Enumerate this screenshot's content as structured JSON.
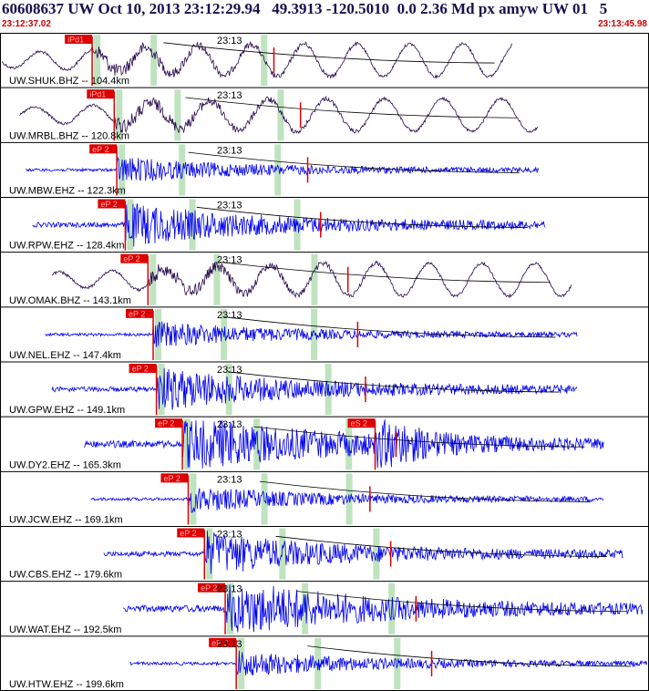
{
  "header": {
    "title": "60608637 UW Oct 10, 2013 23:12:29.94   49.3913 -120.5010  0.0 2.36 Md px amyw UW 01   5",
    "start_time": "23:12:37.02",
    "end_time": "23:13:45.98"
  },
  "colors": {
    "broadband_trace": "#2a0a50",
    "short_period_trace": "#0000ee",
    "pick_box": "#dd0000",
    "pick_text": "#ffaaaa",
    "window_bar": "#bfe3bf",
    "curve": "#000000",
    "label": "#000000"
  },
  "chart_data": {
    "type": "line",
    "time_range": [
      "23:12:37.02",
      "23:13:45.98"
    ],
    "minute_label": "23:13",
    "traces": [
      {
        "label": "UW.SHUK.BHZ -- 104.4km",
        "pick_label": "iPd1",
        "kind": "broadband",
        "pick_frac": 0.142,
        "end_frac": 0.79,
        "start_frac": 0.0
      },
      {
        "label": "UW.MRBL.BHZ -- 120.8km",
        "pick_label": "iPd1",
        "kind": "broadband",
        "pick_frac": 0.176,
        "end_frac": 0.83,
        "start_frac": 0.03
      },
      {
        "label": "UW.MBW.EHZ -- 122.3km",
        "pick_label": "eP 2",
        "kind": "short",
        "pick_frac": 0.18,
        "end_frac": 0.83,
        "start_frac": 0.04
      },
      {
        "label": "UW.RPW.EHZ -- 128.4km",
        "pick_label": "eP 2",
        "kind": "short",
        "pick_frac": 0.193,
        "end_frac": 0.84,
        "start_frac": 0.05
      },
      {
        "label": "UW.OMAK.BHZ -- 143.1km",
        "pick_label": "eP 2",
        "kind": "broadband",
        "pick_frac": 0.228,
        "end_frac": 0.88,
        "start_frac": 0.08
      },
      {
        "label": "UW.NEL.EHZ -- 147.4km",
        "pick_label": "eP 2",
        "kind": "short",
        "pick_frac": 0.236,
        "end_frac": 0.89,
        "start_frac": 0.07
      },
      {
        "label": "UW.GPW.EHZ -- 149.1km",
        "pick_label": "eP 2",
        "kind": "short",
        "pick_frac": 0.241,
        "end_frac": 0.89,
        "start_frac": 0.08
      },
      {
        "label": "UW.DY2.EHZ -- 165.3km",
        "pick_label": "eP 2",
        "kind": "short",
        "pick_frac": 0.281,
        "end_frac": 0.93,
        "start_frac": 0.13,
        "second_pick_label": "eS 2",
        "second_pick_frac": 0.578
      },
      {
        "label": "UW.JCW.EHZ -- 169.1km",
        "pick_label": "eP 2",
        "kind": "short",
        "pick_frac": 0.29,
        "end_frac": 0.93,
        "start_frac": 0.14
      },
      {
        "label": "UW.CBS.EHZ -- 179.6km",
        "pick_label": "eP 2",
        "kind": "short",
        "pick_frac": 0.315,
        "end_frac": 0.96,
        "start_frac": 0.16
      },
      {
        "label": "UW.WAT.EHZ -- 192.5km",
        "pick_label": "eP 2",
        "kind": "short",
        "pick_frac": 0.347,
        "end_frac": 0.99,
        "start_frac": 0.19
      },
      {
        "label": "UW.HTW.EHZ -- 199.6km",
        "pick_label": "eP 2",
        "kind": "short",
        "pick_frac": 0.364,
        "end_frac": 1.0,
        "start_frac": 0.2
      }
    ]
  }
}
